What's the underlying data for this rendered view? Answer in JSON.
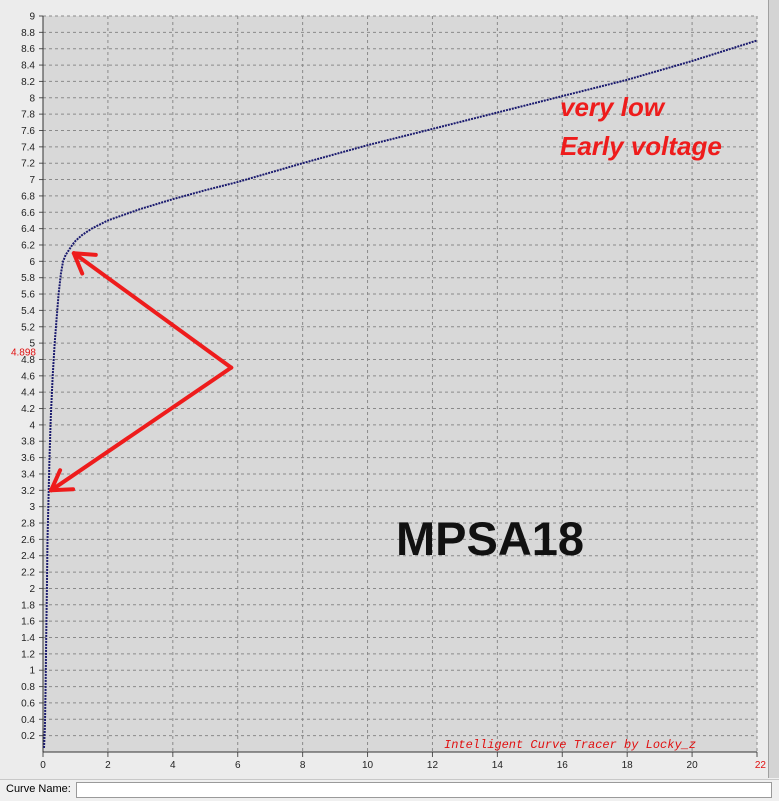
{
  "window": {
    "status_bar": {
      "curve_name_label": "Curve Name:",
      "curve_name_value": ""
    }
  },
  "chart_data": {
    "type": "line",
    "xlim": [
      0,
      22
    ],
    "ylim": [
      0,
      9
    ],
    "x_ticks": [
      0,
      2,
      4,
      6,
      8,
      10,
      12,
      14,
      16,
      18,
      20,
      22
    ],
    "x_tick_labels": [
      "0",
      "2",
      "4",
      "6",
      "8",
      "10",
      "12",
      "14",
      "16",
      "18",
      "20",
      "22"
    ],
    "y_ticks": [
      0.2,
      0.4,
      0.6,
      0.8,
      1,
      1.2,
      1.4,
      1.6,
      1.8,
      2,
      2.2,
      2.4,
      2.6,
      2.8,
      3,
      3.2,
      3.4,
      3.6,
      3.8,
      4,
      4.2,
      4.4,
      4.6,
      4.8,
      5,
      5.2,
      5.4,
      5.6,
      5.8,
      6,
      6.2,
      6.4,
      6.6,
      6.8,
      7,
      7.2,
      7.4,
      7.6,
      7.8,
      8,
      8.2,
      8.4,
      8.6,
      8.8,
      9
    ],
    "y_tick_labels": [
      "0.2",
      "0.4",
      "0.6",
      "0.8",
      "1",
      "1.2",
      "1.4",
      "1.6",
      "1.8",
      "2",
      "2.2",
      "2.4",
      "2.6",
      "2.8",
      "3",
      "3.2",
      "3.4",
      "3.6",
      "3.8",
      "4",
      "4.2",
      "4.4",
      "4.6",
      "4.8",
      "5",
      "5.2",
      "5.4",
      "5.6",
      "5.8",
      "6",
      "6.2",
      "6.4",
      "6.6",
      "6.8",
      "7",
      "7.2",
      "7.4",
      "7.6",
      "7.8",
      "8",
      "8.2",
      "8.4",
      "8.6",
      "8.8",
      "9"
    ],
    "grid": true,
    "marker_label": "4.898",
    "x_end_label": "22",
    "series": [
      {
        "x": [
          0.03,
          0.06,
          0.08,
          0.1,
          0.12,
          0.14,
          0.17,
          0.2,
          0.24,
          0.3,
          0.36,
          0.42,
          0.48,
          0.55,
          0.62,
          0.7,
          0.8,
          0.9,
          1.0,
          1.2,
          1.5,
          2,
          3,
          4,
          5,
          6,
          8,
          10,
          12,
          14,
          16,
          18,
          20,
          22
        ],
        "y": [
          0.05,
          0.3,
          0.8,
          1.4,
          2.0,
          2.6,
          3.1,
          3.6,
          4.1,
          4.6,
          5.0,
          5.3,
          5.6,
          5.85,
          6.0,
          6.08,
          6.14,
          6.2,
          6.25,
          6.32,
          6.4,
          6.5,
          6.64,
          6.76,
          6.87,
          6.97,
          7.2,
          7.42,
          7.62,
          7.82,
          8.02,
          8.22,
          8.45,
          8.7
        ],
        "color": "#1a1a6e"
      }
    ],
    "annotations": {
      "note_line1": "very low",
      "note_line2": "Early voltage",
      "part_label": "MPSA18",
      "watermark": "Intelligent Curve Tracer by Locky_z",
      "arrow_color": "#ee1c1c",
      "arrow_vertex": [
        5.8,
        4.7
      ],
      "arrow_targets": [
        [
          0.95,
          6.1
        ],
        [
          0.25,
          3.2
        ]
      ]
    }
  }
}
